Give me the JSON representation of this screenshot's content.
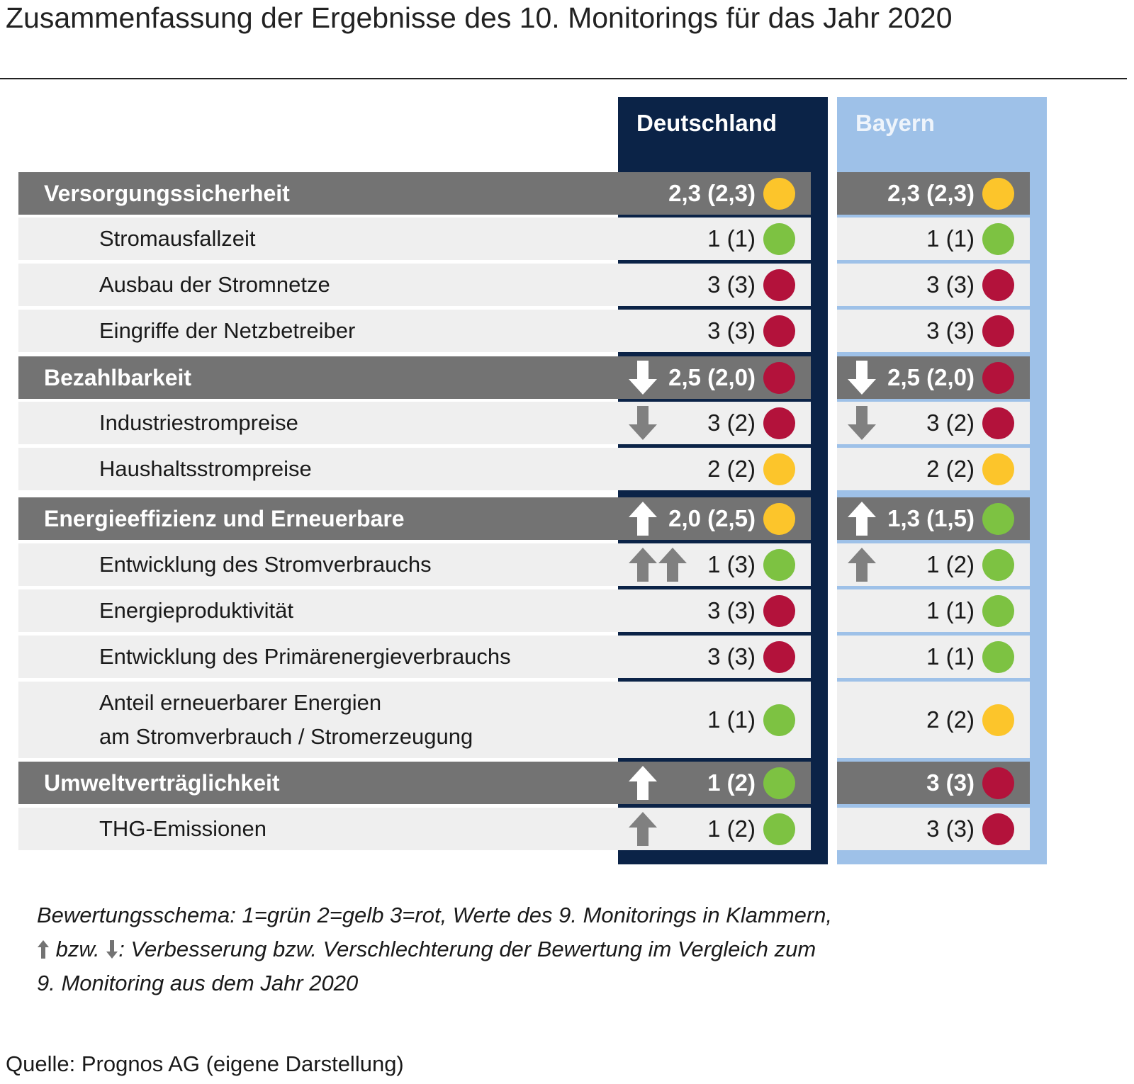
{
  "title": "Zusammenfassung der Ergebnisse des 10. Monitorings für das Jahr 2020",
  "columns": {
    "germany": "Deutschland",
    "bavaria": "Bayern"
  },
  "colors": {
    "green": "#7dc242",
    "yellow": "#fcc52b",
    "red": "#b3123b",
    "navy": "#0b2347",
    "lightblue": "#9ec1e8",
    "gray_header": "#737373",
    "row_bg": "#efefef"
  },
  "rows": [
    {
      "kind": "category",
      "label": "Versorgungssicherheit",
      "de": {
        "score": "2,3 (2,3)",
        "status": "yellow",
        "trend": "none",
        "arrows": 0
      },
      "by": {
        "score": "2,3 (2,3)",
        "status": "yellow",
        "trend": "none",
        "arrows": 0
      }
    },
    {
      "kind": "indicator",
      "label": "Stromausfallzeit",
      "de": {
        "score": "1 (1)",
        "status": "green",
        "trend": "none",
        "arrows": 0
      },
      "by": {
        "score": "1 (1)",
        "status": "green",
        "trend": "none",
        "arrows": 0
      }
    },
    {
      "kind": "indicator",
      "label": "Ausbau der Stromnetze",
      "de": {
        "score": "3 (3)",
        "status": "red",
        "trend": "none",
        "arrows": 0
      },
      "by": {
        "score": "3 (3)",
        "status": "red",
        "trend": "none",
        "arrows": 0
      }
    },
    {
      "kind": "indicator",
      "label": "Eingriffe der Netzbetreiber",
      "de": {
        "score": "3 (3)",
        "status": "red",
        "trend": "none",
        "arrows": 0
      },
      "by": {
        "score": "3 (3)",
        "status": "red",
        "trend": "none",
        "arrows": 0
      }
    },
    {
      "kind": "category",
      "label": "Bezahlbarkeit",
      "de": {
        "score": "2,5 (2,0)",
        "status": "red",
        "trend": "down",
        "arrows": 1
      },
      "by": {
        "score": "2,5 (2,0)",
        "status": "red",
        "trend": "down",
        "arrows": 1
      }
    },
    {
      "kind": "indicator",
      "label": "Industriestrompreise",
      "de": {
        "score": "3 (2)",
        "status": "red",
        "trend": "down",
        "arrows": 1
      },
      "by": {
        "score": "3 (2)",
        "status": "red",
        "trend": "down",
        "arrows": 1
      }
    },
    {
      "kind": "indicator",
      "label": "Haushaltsstrompreise",
      "de": {
        "score": "2 (2)",
        "status": "yellow",
        "trend": "none",
        "arrows": 0
      },
      "by": {
        "score": "2 (2)",
        "status": "yellow",
        "trend": "none",
        "arrows": 0
      }
    },
    {
      "kind": "category",
      "label": "Energieeffizienz und Erneuerbare",
      "de": {
        "score": "2,0 (2,5)",
        "status": "yellow",
        "trend": "up",
        "arrows": 1
      },
      "by": {
        "score": "1,3 (1,5)",
        "status": "green",
        "trend": "up",
        "arrows": 1
      }
    },
    {
      "kind": "indicator",
      "label": "Entwicklung des Stromverbrauchs",
      "de": {
        "score": "1 (3)",
        "status": "green",
        "trend": "up",
        "arrows": 2
      },
      "by": {
        "score": "1 (2)",
        "status": "green",
        "trend": "up",
        "arrows": 1
      }
    },
    {
      "kind": "indicator",
      "label": "Energieproduktivität",
      "de": {
        "score": "3 (3)",
        "status": "red",
        "trend": "none",
        "arrows": 0
      },
      "by": {
        "score": "1 (1)",
        "status": "green",
        "trend": "none",
        "arrows": 0
      }
    },
    {
      "kind": "indicator",
      "label": "Entwicklung des Primärenergieverbrauchs",
      "de": {
        "score": "3 (3)",
        "status": "red",
        "trend": "none",
        "arrows": 0
      },
      "by": {
        "score": "1 (1)",
        "status": "green",
        "trend": "none",
        "arrows": 0
      }
    },
    {
      "kind": "indicator",
      "label": "Anteil erneuerbarer Energien\nam Stromverbrauch / Stromerzeugung",
      "de": {
        "score": "1 (1)",
        "status": "green",
        "trend": "none",
        "arrows": 0
      },
      "by": {
        "score": "2 (2)",
        "status": "yellow",
        "trend": "none",
        "arrows": 0
      }
    },
    {
      "kind": "category",
      "label": "Umweltverträglichkeit",
      "de": {
        "score": "1 (2)",
        "status": "green",
        "trend": "up",
        "arrows": 1
      },
      "by": {
        "score": "3 (3)",
        "status": "red",
        "trend": "none",
        "arrows": 0
      }
    },
    {
      "kind": "indicator",
      "label": "THG-Emissionen",
      "de": {
        "score": "1 (2)",
        "status": "green",
        "trend": "up",
        "arrows": 1
      },
      "by": {
        "score": "3 (3)",
        "status": "red",
        "trend": "none",
        "arrows": 0
      }
    }
  ],
  "legend": {
    "line1": "Bewertungsschema: 1=grün 2=gelb 3=rot, Werte des 9. Monitorings in Klammern,",
    "line2_mid": " bzw. ",
    "line2_end": ": Verbesserung bzw. Verschlechterung der Bewertung im Vergleich zum",
    "line3": "9. Monitoring aus dem Jahr 2020"
  },
  "source": "Quelle: Prognos AG (eigene Darstellung)"
}
